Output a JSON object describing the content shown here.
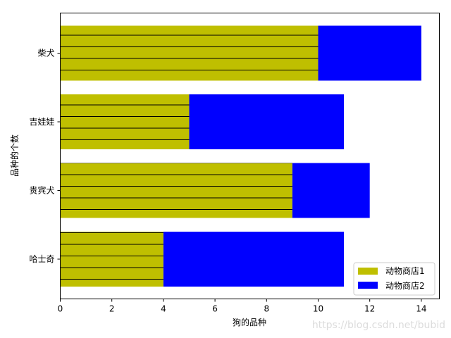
{
  "chart_data": {
    "type": "bar",
    "orientation": "horizontal",
    "stacked": true,
    "categories": [
      "哈士奇",
      "贵宾犬",
      "吉娃娃",
      "柴犬"
    ],
    "series": [
      {
        "name": "动物商店1",
        "values": [
          4,
          9,
          5,
          10
        ],
        "color": "#bfbf00",
        "hatch": "horizontal-lines"
      },
      {
        "name": "动物商店2",
        "values": [
          7,
          3,
          6,
          4
        ],
        "color": "#0000ff"
      }
    ],
    "xlabel": "狗的品种",
    "ylabel": "品种的个数",
    "xlim": [
      0,
      14.7
    ],
    "xticks": [
      0,
      2,
      4,
      6,
      8,
      10,
      12,
      14
    ],
    "grid": false,
    "legend_position": "lower-right"
  },
  "watermark": "https://blog.csdn.net/bubid"
}
